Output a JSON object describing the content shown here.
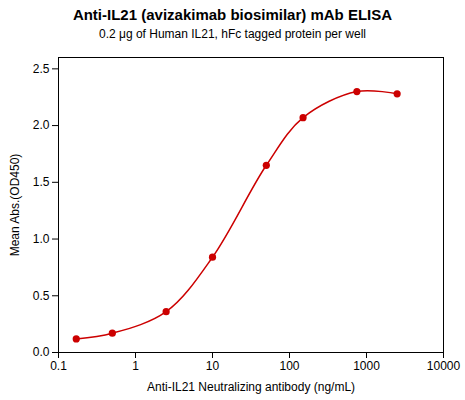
{
  "chart_data": {
    "type": "line",
    "title": "Anti-IL21 (avizakimab biosimilar) mAb ELISA",
    "subtitle": "0.2 μg of Human IL21, hFc tagged protein per well",
    "x_label": "Anti-IL21 Neutralizing antibody (ng/mL)",
    "y_label": "Mean Abs.(OD450)",
    "x": [
      0.17,
      0.5,
      2.5,
      10,
      50,
      150,
      750,
      2500
    ],
    "series": [
      {
        "name": "Mean Abs.(OD450)",
        "color": "#cc0000",
        "marker": "o",
        "values": [
          0.12,
          0.17,
          0.36,
          0.84,
          1.65,
          2.07,
          2.3,
          2.28
        ]
      }
    ],
    "log": "x",
    "xlim": [
      0.1,
      10000
    ],
    "xticks": [
      0.1,
      1,
      10,
      100,
      1000,
      10000
    ],
    "ylim": [
      0.0,
      2.6
    ],
    "yticks": [
      {
        "value": 0,
        "label": "0.0"
      },
      {
        "value": 0.5,
        "label": "0.5"
      },
      {
        "value": 1,
        "label": "1.0"
      },
      {
        "value": 1.5,
        "label": "1.5"
      },
      {
        "value": 2,
        "label": "2.0"
      },
      {
        "value": 2.5,
        "label": "2.5"
      }
    ],
    "grid": false
  }
}
